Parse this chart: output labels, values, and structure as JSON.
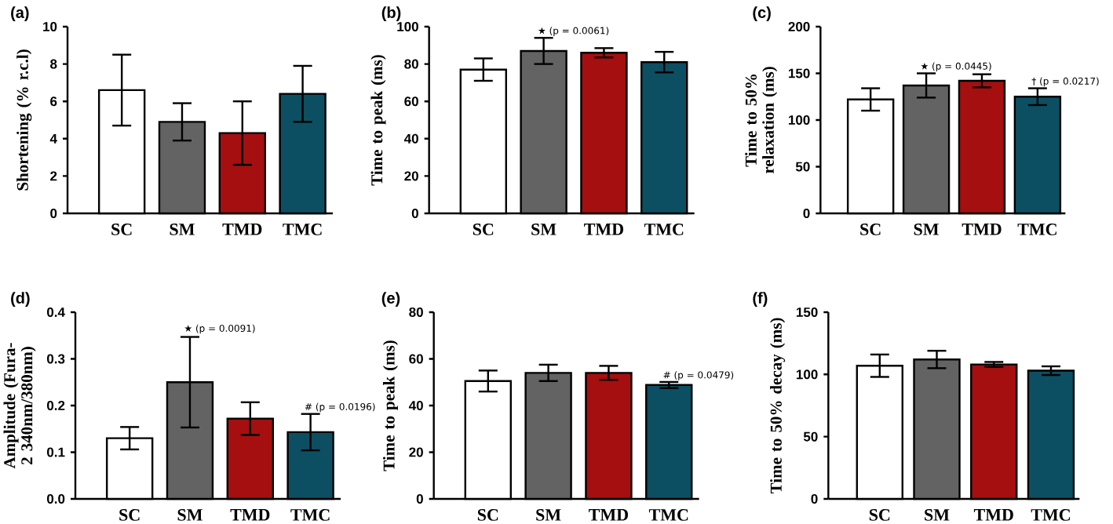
{
  "chart_data": [
    {
      "type": "bar",
      "title": "(a)",
      "ylabel": "Shortening (% r.c.l)",
      "categories": [
        "SC",
        "SM",
        "TMD",
        "TMC"
      ],
      "values": [
        6.6,
        4.9,
        4.3,
        6.4
      ],
      "errors": [
        1.9,
        1.0,
        1.7,
        1.5
      ],
      "colors": [
        "#ffffff",
        "#636363",
        "#a50f0f",
        "#0c4f63"
      ],
      "ylim": [
        0,
        10
      ],
      "yticks": [
        0,
        2,
        4,
        6,
        8,
        10
      ]
    },
    {
      "type": "bar",
      "title": "(b)",
      "ylabel": "Time to peak  (ms)",
      "categories": [
        "SC",
        "SM",
        "TMD",
        "TMC"
      ],
      "values": [
        77,
        87,
        86,
        81
      ],
      "errors": [
        6,
        7,
        2.5,
        5.5
      ],
      "colors": [
        "#ffffff",
        "#636363",
        "#a50f0f",
        "#0c4f63"
      ],
      "ylim": [
        0,
        100
      ],
      "yticks": [
        0,
        20,
        40,
        60,
        80,
        100
      ],
      "annotations": [
        {
          "text": "★ (p = 0.0061)",
          "x": "SM",
          "y": 94
        }
      ]
    },
    {
      "type": "bar",
      "title": "(c)",
      "ylabel": "Time to 50% relaxation (ms)",
      "categories": [
        "SC",
        "SM",
        "TMD",
        "TMC"
      ],
      "values": [
        122,
        137,
        142,
        125
      ],
      "errors": [
        12,
        13,
        7,
        9
      ],
      "colors": [
        "#ffffff",
        "#636363",
        "#a50f0f",
        "#0c4f63"
      ],
      "ylim": [
        0,
        200
      ],
      "yticks": [
        0,
        50,
        100,
        150,
        200
      ],
      "annotations": [
        {
          "text": "★ (p = 0.0445)",
          "x": "SM",
          "y": 150
        },
        {
          "text": "† (p = 0.0217)",
          "x": "TMC",
          "y": 134
        }
      ]
    },
    {
      "type": "bar",
      "title": "(d)",
      "ylabel": "Amplitude (Fura-2 340nm/380nm)",
      "categories": [
        "SC",
        "SM",
        "TMD",
        "TMC"
      ],
      "values": [
        0.13,
        0.25,
        0.172,
        0.143
      ],
      "errors": [
        0.024,
        0.097,
        0.035,
        0.039
      ],
      "colors": [
        "#ffffff",
        "#636363",
        "#a50f0f",
        "#0c4f63"
      ],
      "ylim": [
        0,
        0.4
      ],
      "yticks": [
        {
          "value": 0,
          "label": "0.0"
        },
        0.1,
        0.2,
        0.3,
        0.4
      ],
      "annotations": [
        {
          "text": "★ (p = 0.0091)",
          "x": "SM",
          "y": 0.35
        },
        {
          "text": "# (p = 0.0196)",
          "x": "TMC",
          "y": 0.182
        }
      ]
    },
    {
      "type": "bar",
      "title": "(e)",
      "ylabel": "Time to peak  (ms)",
      "categories": [
        "SC",
        "SM",
        "TMD",
        "TMC"
      ],
      "values": [
        50.5,
        54,
        54,
        48.8
      ],
      "errors": [
        4.5,
        3.5,
        3,
        1.3
      ],
      "colors": [
        "#ffffff",
        "#636363",
        "#a50f0f",
        "#0c4f63"
      ],
      "ylim": [
        0,
        80
      ],
      "yticks": [
        0,
        20,
        40,
        60,
        80
      ],
      "annotations": [
        {
          "text": "# (p = 0.0479)",
          "x": "TMC",
          "y": 50
        }
      ]
    },
    {
      "type": "bar",
      "title": "(f)",
      "ylabel": "Time to 50% decay (ms)",
      "categories": [
        "SC",
        "SM",
        "TMD",
        "TMC"
      ],
      "values": [
        107,
        112,
        108,
        103
      ],
      "errors": [
        9,
        7,
        2,
        3.5
      ],
      "colors": [
        "#ffffff",
        "#636363",
        "#a50f0f",
        "#0c4f63"
      ],
      "ylim": [
        0,
        150
      ],
      "yticks": [
        0,
        50,
        100,
        150
      ]
    }
  ]
}
